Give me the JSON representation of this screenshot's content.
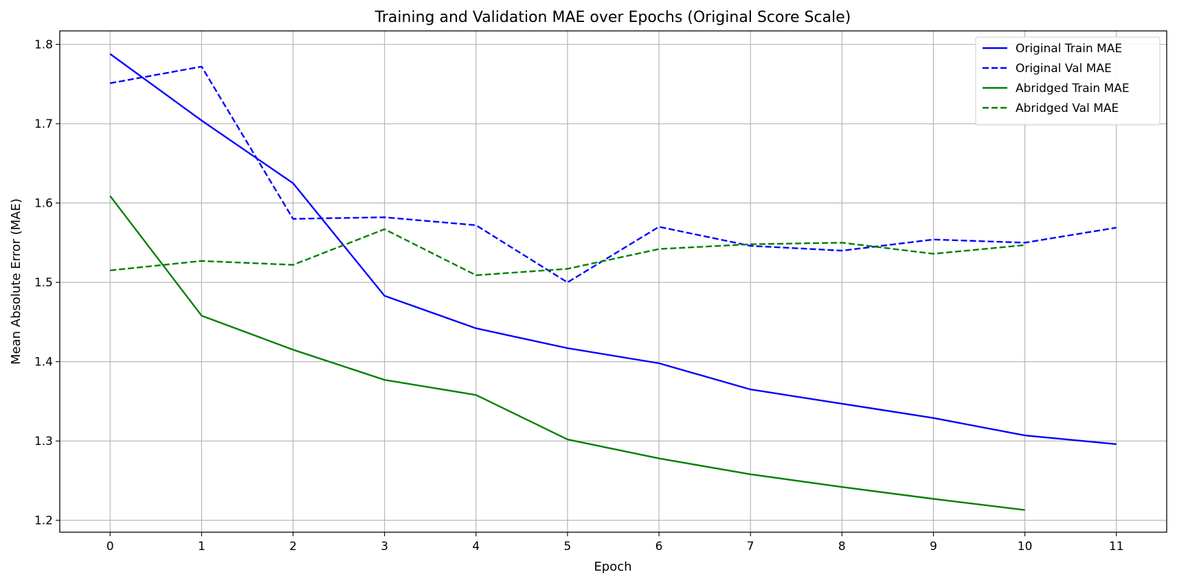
{
  "chart_data": {
    "type": "line",
    "title": "Training and Validation MAE over Epochs (Original Score Scale)",
    "xlabel": "Epoch",
    "ylabel": "Mean Absolute Error (MAE)",
    "xlim": [
      -0.55,
      11.55
    ],
    "ylim": [
      1.185,
      1.817
    ],
    "xticks": [
      0,
      1,
      2,
      3,
      4,
      5,
      6,
      7,
      8,
      9,
      10,
      11
    ],
    "yticks": [
      1.2,
      1.3,
      1.4,
      1.5,
      1.6,
      1.7,
      1.8
    ],
    "ytick_labels": [
      "1.2",
      "1.3",
      "1.4",
      "1.5",
      "1.6",
      "1.7",
      "1.8"
    ],
    "grid": true,
    "legend_position": "top-right",
    "series": [
      {
        "name": "Original Train MAE",
        "color": "#0000ff",
        "dash": "solid",
        "x": [
          0,
          1,
          2,
          3,
          4,
          5,
          6,
          7,
          8,
          9,
          10,
          11
        ],
        "values": [
          1.788,
          1.704,
          1.625,
          1.483,
          1.442,
          1.417,
          1.398,
          1.365,
          1.347,
          1.329,
          1.307,
          1.296
        ]
      },
      {
        "name": "Original Val MAE",
        "color": "#0000ff",
        "dash": "dashed",
        "x": [
          0,
          1,
          2,
          3,
          4,
          5,
          6,
          7,
          8,
          9,
          10,
          11
        ],
        "values": [
          1.751,
          1.772,
          1.58,
          1.582,
          1.572,
          1.5,
          1.57,
          1.546,
          1.54,
          1.554,
          1.55,
          1.569
        ]
      },
      {
        "name": "Abridged Train MAE",
        "color": "#008000",
        "dash": "solid",
        "x": [
          0,
          1,
          2,
          3,
          4,
          5,
          6,
          7,
          8,
          9,
          10
        ],
        "values": [
          1.609,
          1.458,
          1.415,
          1.377,
          1.358,
          1.302,
          1.278,
          1.258,
          1.242,
          1.227,
          1.213
        ]
      },
      {
        "name": "Abridged Val MAE",
        "color": "#008000",
        "dash": "dashed",
        "x": [
          0,
          1,
          2,
          3,
          4,
          5,
          6,
          7,
          8,
          9,
          10
        ],
        "values": [
          1.515,
          1.527,
          1.522,
          1.567,
          1.509,
          1.517,
          1.542,
          1.548,
          1.55,
          1.536,
          1.547
        ]
      }
    ]
  }
}
